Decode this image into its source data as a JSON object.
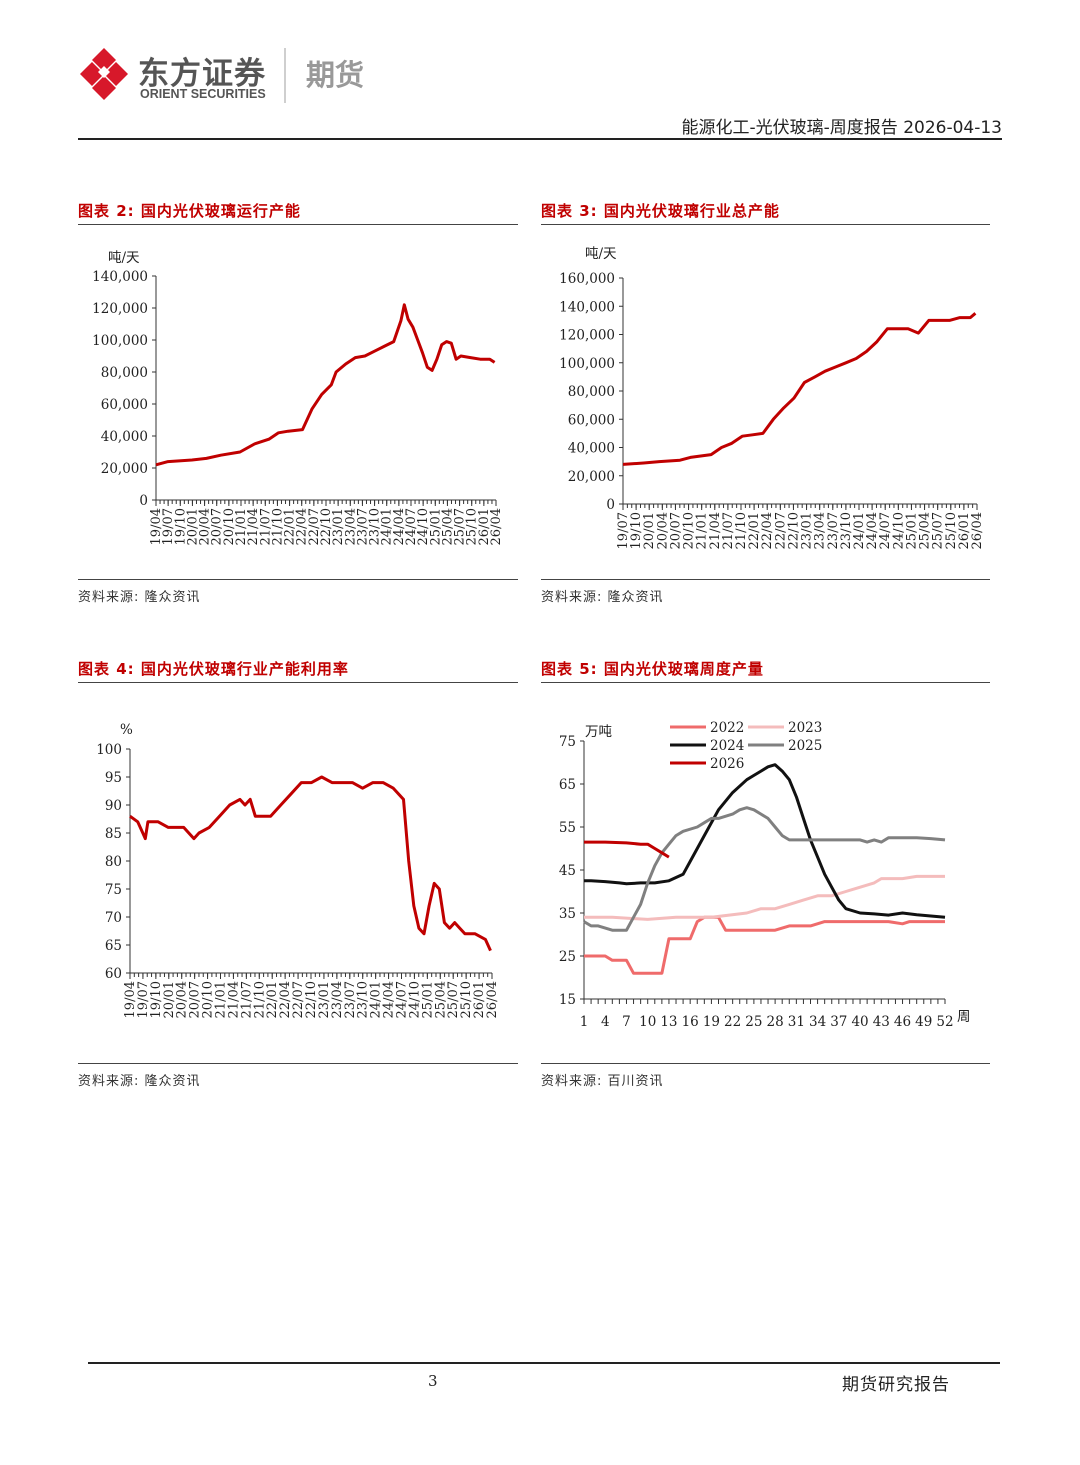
{
  "brand": {
    "name_cn": "东方证券",
    "name_en": "ORIENT SECURITIES",
    "division": "期货",
    "logo_color": "#d7182a"
  },
  "header": {
    "report_title": "能源化工-光伏玻璃-周度报告 2026-04-13"
  },
  "footer": {
    "page_number": "3",
    "label": "期货研究报告"
  },
  "colors": {
    "title_red": "#c00000",
    "series_red": "#c00000"
  },
  "chart_data": [
    {
      "id": "chart2",
      "type": "line",
      "title": "图表 2: 国内光伏玻璃运行产能",
      "source": "资料来源: 隆众资讯",
      "ylabel": "吨/天",
      "ylim": [
        0,
        140000
      ],
      "yticks": [
        "0",
        "20,000",
        "40,000",
        "60,000",
        "80,000",
        "100,000",
        "120,000",
        "140,000"
      ],
      "xlim": [
        2019.25,
        2026.33
      ],
      "xticks": [
        "19/04",
        "19/07",
        "19/10",
        "20/01",
        "20/04",
        "20/07",
        "20/10",
        "21/01",
        "21/04",
        "21/07",
        "21/10",
        "22/01",
        "22/04",
        "22/07",
        "22/10",
        "23/01",
        "23/04",
        "23/07",
        "23/10",
        "24/01",
        "24/04",
        "24/07",
        "24/10",
        "25/01",
        "25/04",
        "25/07",
        "25/10",
        "26/01",
        "26/04"
      ],
      "series": [
        {
          "name": "运行产能",
          "color": "#c00000",
          "x": [
            2019.25,
            2019.5,
            2020.0,
            2020.3,
            2020.6,
            2021.0,
            2021.3,
            2021.6,
            2021.8,
            2022.0,
            2022.3,
            2022.5,
            2022.7,
            2022.9,
            2023.0,
            2023.2,
            2023.4,
            2023.6,
            2023.8,
            2024.0,
            2024.2,
            2024.35,
            2024.42,
            2024.5,
            2024.6,
            2024.7,
            2024.8,
            2024.9,
            2025.0,
            2025.1,
            2025.2,
            2025.3,
            2025.4,
            2025.5,
            2025.6,
            2025.8,
            2026.0,
            2026.2,
            2026.3
          ],
          "y": [
            22000,
            24000,
            25000,
            26000,
            28000,
            30000,
            35000,
            38000,
            42000,
            43000,
            44000,
            57000,
            66000,
            72000,
            80000,
            85000,
            89000,
            90000,
            93000,
            96000,
            99000,
            112000,
            122000,
            113000,
            108000,
            100000,
            92000,
            83000,
            81000,
            88000,
            97000,
            99000,
            98000,
            88000,
            90000,
            89000,
            88000,
            88000,
            86000
          ]
        }
      ]
    },
    {
      "id": "chart3",
      "type": "line",
      "title": "图表 3: 国内光伏玻璃行业总产能",
      "source": "资料来源: 隆众资讯",
      "ylabel": "吨/天",
      "ylim": [
        0,
        160000
      ],
      "yticks": [
        "0",
        "20,000",
        "40,000",
        "60,000",
        "80,000",
        "100,000",
        "120,000",
        "140,000",
        "160,000"
      ],
      "xlim": [
        2019.5,
        2026.33
      ],
      "xticks": [
        "19/07",
        "19/10",
        "20/01",
        "20/04",
        "20/07",
        "20/10",
        "21/01",
        "21/04",
        "21/07",
        "21/10",
        "22/01",
        "22/04",
        "22/07",
        "22/10",
        "23/01",
        "23/04",
        "23/07",
        "23/10",
        "24/01",
        "24/04",
        "24/07",
        "24/10",
        "25/01",
        "25/04",
        "25/07",
        "25/10",
        "26/01",
        "26/04"
      ],
      "series": [
        {
          "name": "总产能",
          "color": "#c00000",
          "x": [
            2019.5,
            2019.9,
            2020.2,
            2020.6,
            2020.8,
            2021.0,
            2021.2,
            2021.4,
            2021.6,
            2021.8,
            2022.0,
            2022.2,
            2022.4,
            2022.6,
            2022.8,
            2023.0,
            2023.2,
            2023.4,
            2023.6,
            2023.8,
            2024.0,
            2024.2,
            2024.4,
            2024.6,
            2024.8,
            2025.0,
            2025.2,
            2025.4,
            2025.6,
            2025.8,
            2026.0,
            2026.2,
            2026.3
          ],
          "y": [
            28000,
            29000,
            30000,
            31000,
            33000,
            34000,
            35000,
            40000,
            43000,
            48000,
            49000,
            50000,
            60000,
            68000,
            75000,
            86000,
            90000,
            94000,
            97000,
            100000,
            103000,
            108000,
            115000,
            124000,
            124000,
            124000,
            121000,
            130000,
            130000,
            130000,
            132000,
            132000,
            135000
          ]
        }
      ]
    },
    {
      "id": "chart4",
      "type": "line",
      "title": "图表 4: 国内光伏玻璃行业产能利用率",
      "source": "资料来源: 隆众资讯",
      "ylabel": "%",
      "ylim": [
        60,
        100
      ],
      "yticks": [
        "60",
        "65",
        "70",
        "75",
        "80",
        "85",
        "90",
        "95",
        "100"
      ],
      "xlim": [
        2019.25,
        2026.33
      ],
      "xticks": [
        "19/04",
        "19/07",
        "19/10",
        "20/01",
        "20/04",
        "20/07",
        "20/10",
        "21/01",
        "21/04",
        "21/07",
        "21/10",
        "22/01",
        "22/04",
        "22/07",
        "22/10",
        "23/01",
        "23/04",
        "23/07",
        "23/10",
        "24/01",
        "24/04",
        "24/07",
        "24/10",
        "25/01",
        "25/04",
        "25/07",
        "25/10",
        "26/01",
        "26/04"
      ],
      "series": [
        {
          "name": "产能利用率",
          "color": "#c00000",
          "x": [
            2019.25,
            2019.4,
            2019.5,
            2019.55,
            2019.6,
            2019.8,
            2020.0,
            2020.3,
            2020.5,
            2020.6,
            2020.8,
            2021.0,
            2021.2,
            2021.4,
            2021.5,
            2021.6,
            2021.7,
            2022.0,
            2022.2,
            2022.4,
            2022.6,
            2022.8,
            2023.0,
            2023.2,
            2023.4,
            2023.6,
            2023.8,
            2024.0,
            2024.2,
            2024.4,
            2024.6,
            2024.7,
            2024.8,
            2024.9,
            2025.0,
            2025.1,
            2025.2,
            2025.3,
            2025.4,
            2025.5,
            2025.6,
            2025.7,
            2025.8,
            2026.0,
            2026.2,
            2026.3
          ],
          "y": [
            88,
            87,
            85,
            84,
            87,
            87,
            86,
            86,
            84,
            85,
            86,
            88,
            90,
            91,
            90,
            91,
            88,
            88,
            90,
            92,
            94,
            94,
            95,
            94,
            94,
            94,
            93,
            94,
            94,
            93,
            91,
            80,
            72,
            68,
            67,
            72,
            76,
            75,
            69,
            68,
            69,
            68,
            67,
            67,
            66,
            64
          ]
        }
      ]
    },
    {
      "id": "chart5",
      "type": "line",
      "title": "图表 5: 国内光伏玻璃周度产量",
      "source": "资料来源: 百川资讯",
      "ylabel": "万吨",
      "xlabel": "周",
      "ylim": [
        15,
        75
      ],
      "yticks": [
        "15",
        "25",
        "35",
        "45",
        "55",
        "65",
        "75"
      ],
      "xlim": [
        1,
        52
      ],
      "xticks": [
        "1",
        "4",
        "7",
        "10",
        "13",
        "16",
        "19",
        "22",
        "25",
        "28",
        "31",
        "34",
        "37",
        "40",
        "43",
        "46",
        "49",
        "52"
      ],
      "series": [
        {
          "name": "2022",
          "color": "#ef6b6b",
          "x": [
            1,
            4,
            5,
            7,
            8,
            10,
            12,
            13,
            14,
            16,
            17,
            18,
            19,
            20,
            21,
            22,
            25,
            28,
            30,
            31,
            33,
            35,
            38,
            41,
            44,
            46,
            47,
            49,
            52
          ],
          "y": [
            25,
            25,
            24,
            24,
            21,
            21,
            21,
            29,
            29,
            29,
            33,
            34,
            34,
            34,
            31,
            31,
            31,
            31,
            32,
            32,
            32,
            33,
            33,
            33,
            33,
            32.5,
            33,
            33,
            33
          ]
        },
        {
          "name": "2023",
          "color": "#f4bcbc",
          "x": [
            1,
            5,
            10,
            14,
            19,
            24,
            26,
            28,
            30,
            32,
            34,
            36,
            38,
            40,
            42,
            43,
            46,
            48,
            52
          ],
          "y": [
            34,
            34,
            33.5,
            34,
            34,
            35,
            36,
            36,
            37,
            38,
            39,
            39,
            40,
            41,
            42,
            43,
            43,
            43.5,
            43.5
          ]
        },
        {
          "name": "2024",
          "color": "#111111",
          "x": [
            1,
            2,
            4,
            6,
            7,
            9,
            11,
            13,
            15,
            16,
            18,
            20,
            22,
            24,
            25,
            26,
            27,
            28,
            29,
            30,
            31,
            32,
            33,
            34,
            35,
            36,
            37,
            38,
            40,
            42,
            44,
            46,
            48,
            50,
            52
          ],
          "y": [
            42.5,
            42.5,
            42.3,
            42,
            41.8,
            42,
            42,
            42.5,
            44,
            47,
            53,
            59,
            63,
            66,
            67,
            68,
            69,
            69.5,
            68,
            66,
            62,
            57,
            52,
            48,
            44,
            41,
            38,
            36,
            35,
            34.8,
            34.5,
            35,
            34.6,
            34.3,
            34
          ]
        },
        {
          "name": "2025",
          "color": "#808080",
          "x": [
            1,
            2,
            3,
            5,
            6,
            7,
            8,
            9,
            10,
            11,
            12,
            13,
            14,
            15,
            17,
            18,
            19,
            20,
            22,
            23,
            24,
            25,
            26,
            27,
            28,
            29,
            30,
            31,
            34,
            37,
            40,
            41,
            42,
            43,
            44,
            46,
            48,
            50,
            52
          ],
          "y": [
            33,
            32,
            32,
            31,
            31,
            31,
            34,
            37,
            42,
            46,
            49,
            51,
            53,
            54,
            55,
            56,
            57,
            57,
            58,
            59,
            59.5,
            59,
            58,
            57,
            55,
            53,
            52,
            52,
            52,
            52,
            52,
            51.5,
            52,
            51.5,
            52.5,
            52.5,
            52.5,
            52.3,
            52
          ]
        },
        {
          "name": "2026",
          "color": "#c00000",
          "x": [
            1,
            4,
            7,
            9,
            10,
            11,
            12,
            13
          ],
          "y": [
            51.5,
            51.5,
            51.3,
            51,
            51,
            50,
            49,
            48
          ]
        }
      ]
    }
  ]
}
